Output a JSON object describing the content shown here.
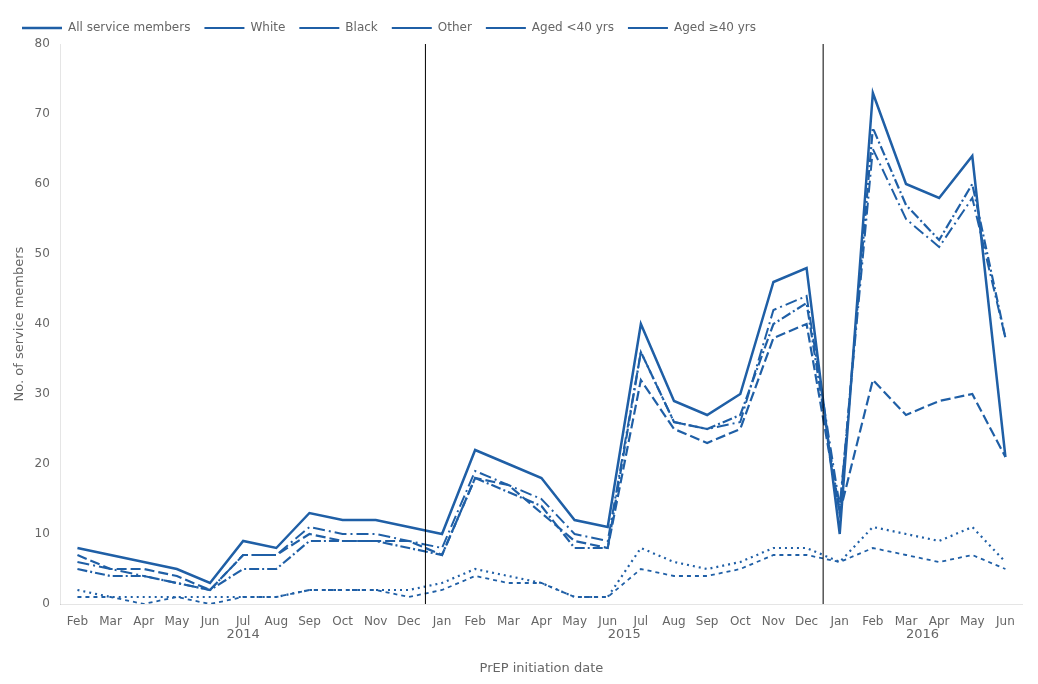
{
  "chart_data": {
    "type": "line",
    "categories": [
      "Feb",
      "Mar",
      "Apr",
      "May",
      "Jun",
      "Jul",
      "Aug",
      "Sep",
      "Oct",
      "Nov",
      "Dec",
      "Jan",
      "Feb",
      "Mar",
      "Apr",
      "May",
      "Jun",
      "Jul",
      "Aug",
      "Sep",
      "Oct",
      "Nov",
      "Dec",
      "Jan",
      "Feb",
      "Mar",
      "Apr",
      "May",
      "Jun"
    ],
    "x_label": "PrEP initiation date",
    "y_label": "No. of service members",
    "color": "#1f5fa6",
    "series": [
      {
        "name": "All service members",
        "line_style": "solid",
        "values": [
          8,
          7,
          6,
          5,
          3,
          9,
          8,
          13,
          12,
          12,
          11,
          10,
          22,
          20,
          18,
          12,
          11,
          40,
          29,
          27,
          30,
          46,
          48,
          10,
          73,
          60,
          58,
          64,
          21
        ]
      },
      {
        "name": "White",
        "line_style": "dashed",
        "values": [
          7,
          5,
          5,
          4,
          2,
          7,
          7,
          10,
          9,
          9,
          9,
          7,
          18,
          17,
          13,
          9,
          8,
          32,
          25,
          23,
          25,
          38,
          40,
          13,
          32,
          27,
          29,
          30,
          21
        ]
      },
      {
        "name": "Black",
        "line_style": "dotted",
        "values": [
          2,
          1,
          1,
          1,
          1,
          1,
          1,
          2,
          2,
          2,
          2,
          3,
          5,
          4,
          3,
          1,
          1,
          8,
          6,
          5,
          6,
          8,
          8,
          6,
          11,
          10,
          9,
          11,
          6
        ]
      },
      {
        "name": "Other",
        "line_style": "shortdashed",
        "values": [
          1,
          1,
          0,
          1,
          0,
          1,
          1,
          2,
          2,
          2,
          1,
          2,
          4,
          3,
          3,
          1,
          1,
          5,
          4,
          4,
          5,
          7,
          7,
          6,
          8,
          7,
          6,
          7,
          5
        ]
      },
      {
        "name": "Aged <40 yrs",
        "line_style": "dashdot",
        "values": [
          6,
          5,
          4,
          3,
          2,
          7,
          7,
          11,
          10,
          10,
          9,
          8,
          19,
          17,
          15,
          10,
          9,
          36,
          26,
          25,
          26,
          42,
          44,
          14,
          65,
          55,
          51,
          58,
          38
        ]
      },
      {
        "name": "Aged ≥40 yrs",
        "line_style": "densedashdot",
        "values": [
          5,
          4,
          4,
          3,
          2,
          5,
          5,
          9,
          9,
          9,
          8,
          7,
          18,
          16,
          14,
          8,
          8,
          36,
          26,
          25,
          27,
          40,
          43,
          13,
          68,
          57,
          52,
          60,
          38
        ]
      }
    ],
    "annotations": [
      {
        "text": "2014",
        "x": 5.0
      },
      {
        "text": "2015",
        "x": 16.5
      },
      {
        "text": "2016",
        "x": 25.5
      }
    ],
    "vlines": [
      10.5,
      22.5
    ],
    "ylim": [
      0,
      80
    ],
    "yticks": [
      0,
      10,
      20,
      30,
      40,
      50,
      60,
      70,
      80
    ],
    "grid": false,
    "legend": "upper left"
  }
}
